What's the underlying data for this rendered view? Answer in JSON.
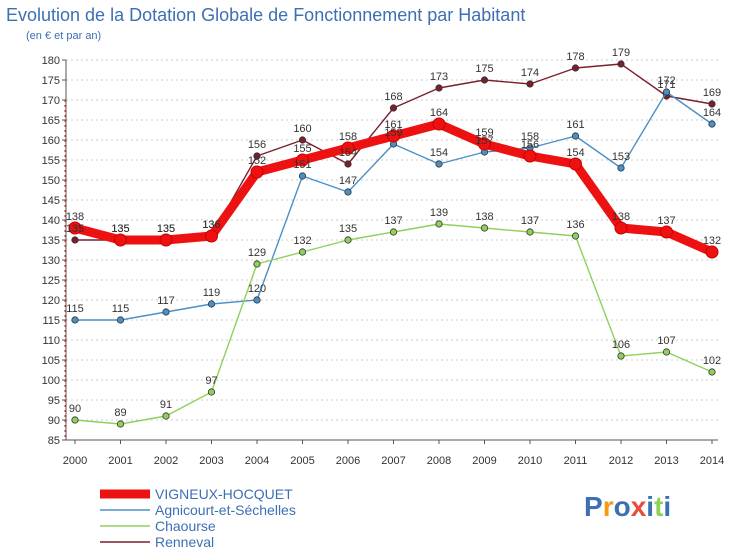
{
  "chart_data": {
    "type": "line",
    "title": "Evolution de la Dotation Globale de Fonctionnement par Habitant",
    "subtitle": "(en € et par an)",
    "xlabel": "",
    "ylabel": "",
    "x": [
      "2000",
      "2001",
      "2002",
      "2003",
      "2004",
      "2005",
      "2006",
      "2007",
      "2008",
      "2009",
      "2010",
      "2011",
      "2012",
      "2013",
      "2014"
    ],
    "ylim": [
      85,
      180
    ],
    "ytick_step": 5,
    "grid": "horizontal dashed",
    "legend_position": "bottom-left",
    "series": [
      {
        "name": "Renneval",
        "color": "#7a1f2b",
        "values": [
          135,
          135,
          135,
          136,
          156,
          160,
          154,
          168,
          173,
          175,
          174,
          178,
          179,
          171,
          169
        ],
        "labels": [
          "135",
          "135",
          "135",
          "136",
          "156",
          "160",
          "154",
          "168",
          "173",
          "175",
          "174",
          "178",
          "179",
          "171",
          "169"
        ]
      },
      {
        "name": "Agnicourt-et-Séchelles",
        "color": "#4a90c8",
        "values": [
          115,
          115,
          117,
          119,
          120,
          151,
          147,
          159,
          154,
          157,
          158,
          161,
          153,
          172,
          164
        ],
        "labels": [
          "115",
          "115",
          "117",
          "119",
          "120",
          "151",
          "147",
          "159",
          "154",
          "157",
          "158",
          "161",
          "153",
          "172",
          "164"
        ]
      },
      {
        "name": "Chaourse",
        "color": "#8fd05a",
        "values": [
          90,
          89,
          91,
          97,
          129,
          132,
          135,
          137,
          139,
          138,
          137,
          136,
          106,
          107,
          102
        ],
        "labels": [
          "90",
          "89",
          "91",
          "97",
          "129",
          "132",
          "135",
          "137",
          "139",
          "138",
          "137",
          "136",
          "106",
          "107",
          "102"
        ]
      },
      {
        "name": "VIGNEUX-HOCQUET",
        "color": "#ee1111",
        "values": [
          138,
          135,
          135,
          136,
          152,
          155,
          158,
          161,
          164,
          159,
          156,
          154,
          138,
          137,
          132
        ],
        "labels": [
          "138",
          "135",
          "135",
          "136",
          "152",
          "155",
          "158",
          "161",
          "164",
          "159",
          "156",
          "154",
          "138",
          "137",
          "132"
        ]
      }
    ],
    "legend_order": [
      "VIGNEUX-HOCQUET",
      "Agnicourt-et-Séchelles",
      "Chaourse",
      "Renneval"
    ]
  },
  "logo": {
    "text": "Proxiti"
  }
}
